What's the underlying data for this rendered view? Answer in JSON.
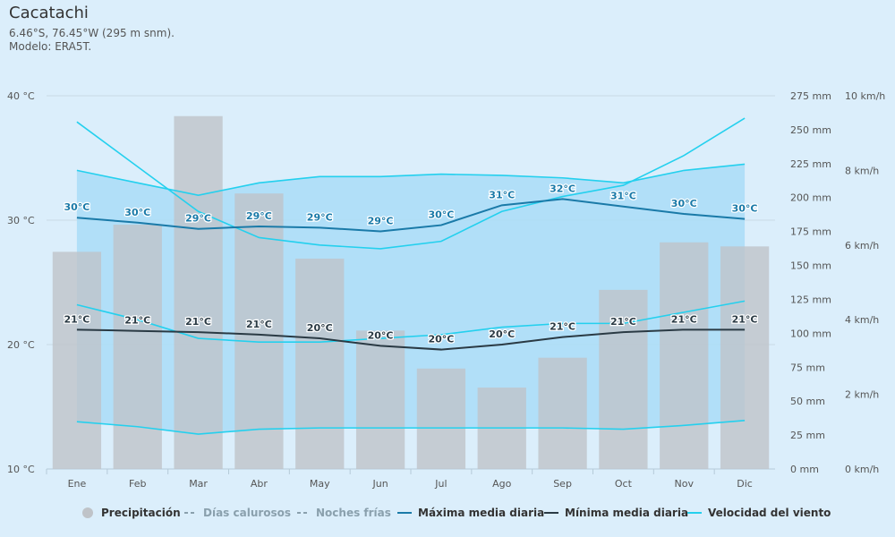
{
  "header": {
    "title": "Cacatachi",
    "coords": "6.46°S, 76.45°W (295 m snm).",
    "model": "Modelo: ERA5T."
  },
  "chart_data": {
    "type": "bar+line",
    "categories": [
      "Ene",
      "Feb",
      "Mar",
      "Abr",
      "May",
      "Jun",
      "Jul",
      "Ago",
      "Sep",
      "Oct",
      "Nov",
      "Dic"
    ],
    "temp_axis": {
      "ticks": [
        "40 °C",
        "30 °C",
        "20 °C",
        "10 °C"
      ],
      "min": 10,
      "max": 40
    },
    "precip_axis": {
      "ticks": [
        "275 mm",
        "250 mm",
        "225 mm",
        "200 mm",
        "175 mm",
        "150 mm",
        "125 mm",
        "100 mm",
        "75 mm",
        "50 mm",
        "25 mm",
        "0 mm"
      ],
      "min": 0,
      "max": 275
    },
    "wind_axis": {
      "ticks": [
        "10 km/h",
        "8 km/h",
        "6 km/h",
        "4 km/h",
        "2 km/h",
        "0 km/h"
      ],
      "min": 0,
      "max": 10
    },
    "precipitation_mm": [
      160,
      180,
      260,
      203,
      155,
      102,
      74,
      60,
      82,
      132,
      167,
      164
    ],
    "hot_days_band": [
      34,
      33,
      32,
      33,
      33.5,
      33.5,
      33.7,
      33.6,
      33.4,
      33,
      34,
      34.5
    ],
    "cold_nights_band": [
      13.8,
      13.4,
      12.8,
      13.2,
      13.3,
      13.3,
      13.3,
      13.3,
      13.3,
      13.2,
      13.5,
      13.9
    ],
    "max_daily_mean": [
      30.2,
      29.8,
      29.3,
      29.5,
      29.4,
      29.1,
      29.6,
      31.2,
      31.7,
      31.1,
      30.5,
      30.1
    ],
    "max_labels": [
      "30°C",
      "30°C",
      "29°C",
      "29°C",
      "29°C",
      "29°C",
      "30°C",
      "31°C",
      "32°C",
      "31°C",
      "30°C",
      "30°C"
    ],
    "min_daily_mean": [
      21.2,
      21.1,
      21,
      20.8,
      20.5,
      19.9,
      19.6,
      20,
      20.6,
      21,
      21.2,
      21.2
    ],
    "min_labels": [
      "21°C",
      "21°C",
      "21°C",
      "21°C",
      "20°C",
      "20°C",
      "20°C",
      "20°C",
      "21°C",
      "21°C",
      "21°C",
      "21°C"
    ],
    "wind_kmh": [
      9.3,
      8.1,
      6.9,
      6.2,
      6.0,
      5.9,
      6.1,
      6.9,
      7.3,
      7.6,
      8.4,
      9.4
    ],
    "wind_low_kmh": [
      4.4,
      4.0,
      3.5,
      3.4,
      3.4,
      3.5,
      3.6,
      3.8,
      3.9,
      3.9,
      4.2,
      4.5
    ]
  },
  "legend": {
    "precip": "Precipitación",
    "hot": "Días calurosos",
    "cold": "Noches frías",
    "max": "Máxima media diaria",
    "min": "Mínima media diaria",
    "wind": "Velocidad del viento"
  },
  "colors": {
    "bars": "#bfc3c8",
    "band": "#a9dcf7",
    "max_line": "#1a7aa8",
    "min_line": "#2a3a44",
    "wind": "#24d0ee",
    "grid": "#c8dbe6"
  }
}
